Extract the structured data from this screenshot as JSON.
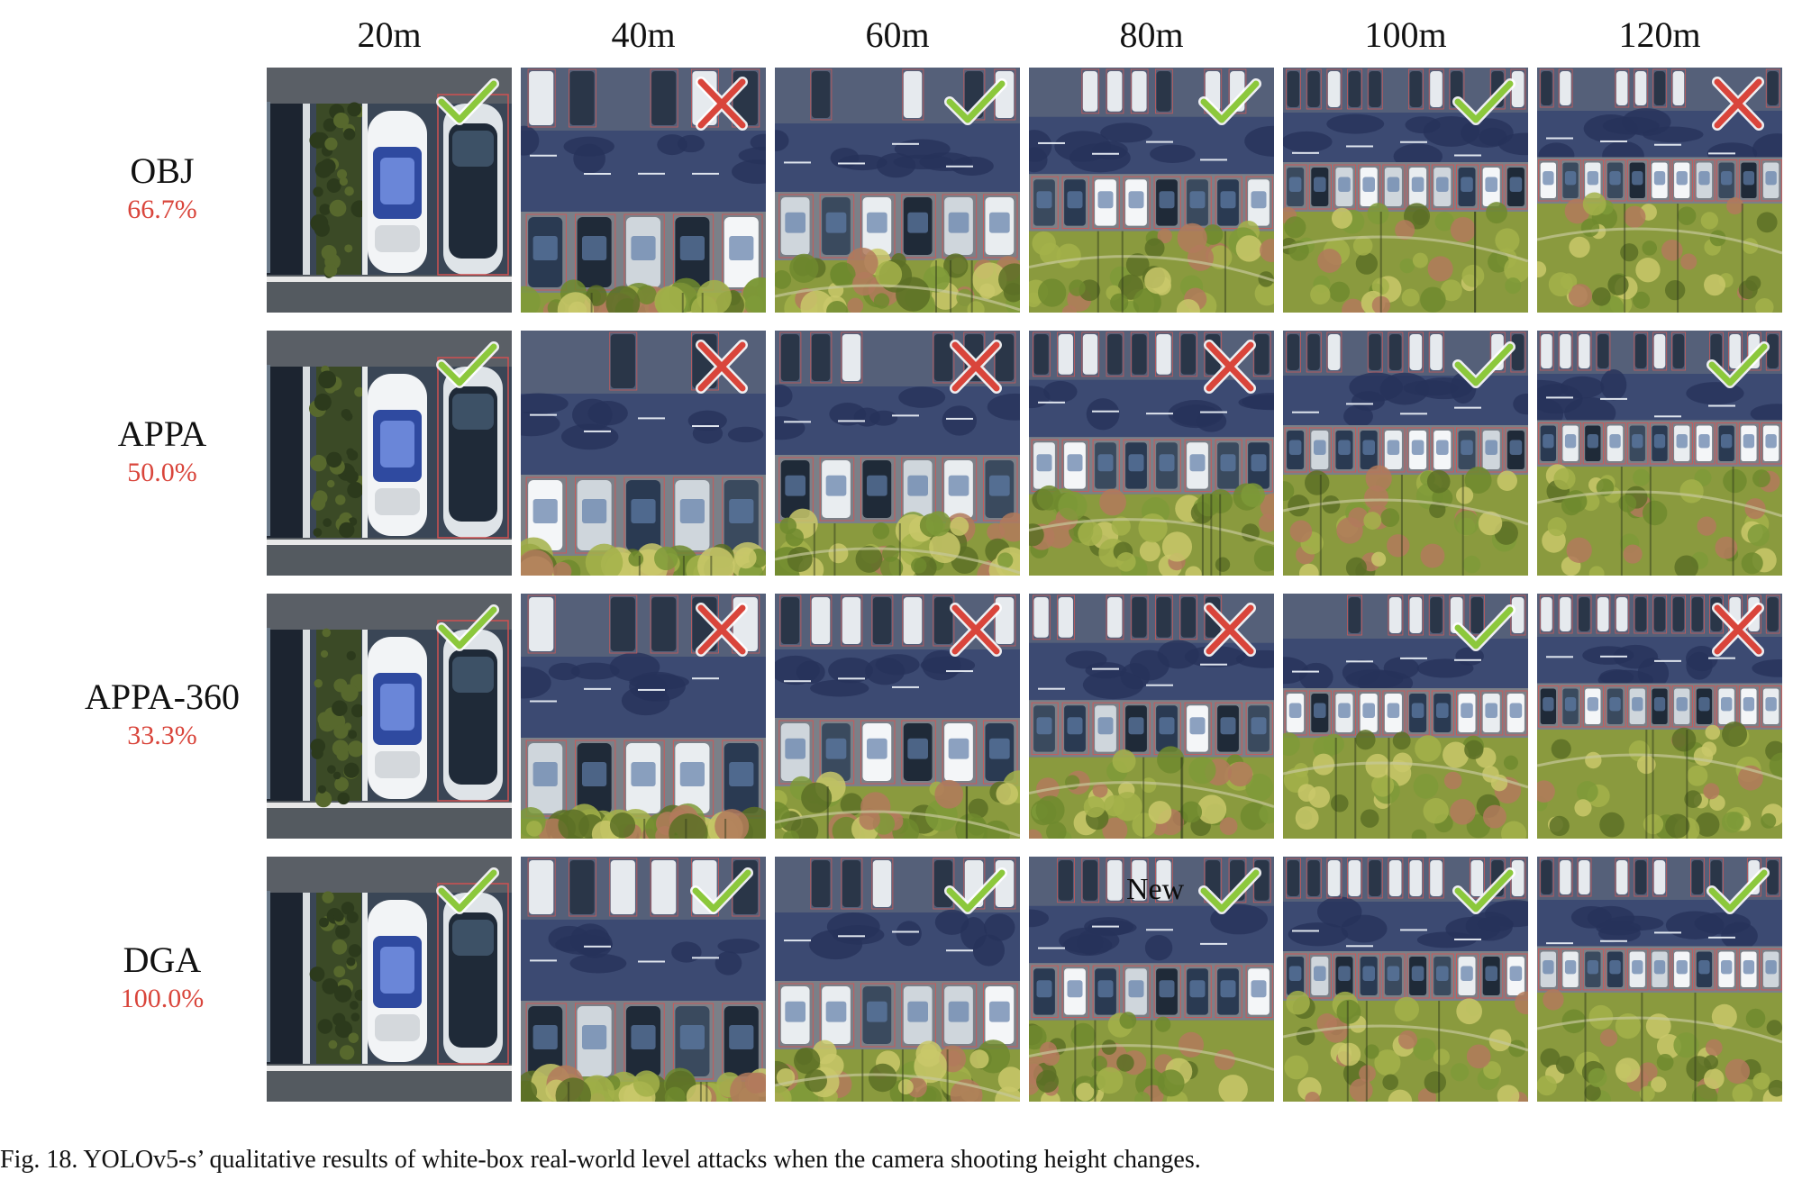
{
  "columns": [
    "20m",
    "40m",
    "60m",
    "80m",
    "100m",
    "120m"
  ],
  "rows": [
    {
      "method": "OBJ",
      "success_rate": "66.7%",
      "results": [
        "check",
        "cross",
        "check",
        "check",
        "check",
        "cross"
      ]
    },
    {
      "method": "APPA",
      "success_rate": "50.0%",
      "results": [
        "check",
        "cross",
        "cross",
        "cross",
        "check",
        "check"
      ]
    },
    {
      "method": "APPA-360",
      "success_rate": "33.3%",
      "results": [
        "check",
        "cross",
        "cross",
        "cross",
        "check",
        "cross"
      ]
    },
    {
      "method": "DGA",
      "success_rate": "100.0%",
      "results": [
        "check",
        "check",
        "check",
        "check",
        "check",
        "check"
      ]
    }
  ],
  "tile_overlay_text": {
    "row": 3,
    "col": 3,
    "text": "New"
  },
  "caption": "Fig. 18.  YOLOv5-s’ qualitative results of white-box real-world level attacks when the camera shooting height changes.",
  "colors": {
    "check": "#8cc83c",
    "cross": "#d9453b",
    "score": "#d9453b"
  }
}
